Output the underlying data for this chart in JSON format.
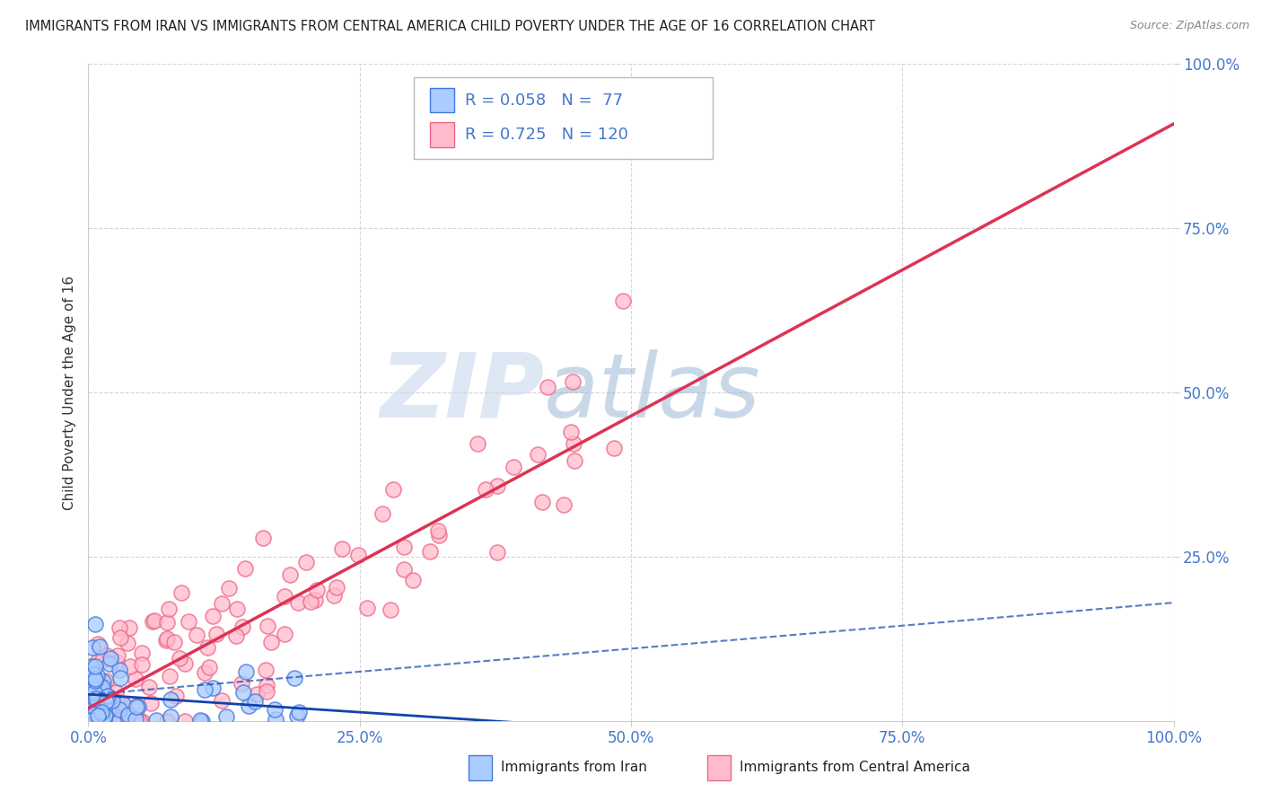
{
  "title": "IMMIGRANTS FROM IRAN VS IMMIGRANTS FROM CENTRAL AMERICA CHILD POVERTY UNDER THE AGE OF 16 CORRELATION CHART",
  "source": "Source: ZipAtlas.com",
  "ylabel": "Child Poverty Under the Age of 16",
  "legend_iran_R": "0.058",
  "legend_iran_N": "77",
  "legend_ca_R": "0.725",
  "legend_ca_N": "120",
  "iran_face_color": "#aaccff",
  "iran_edge_color": "#4477dd",
  "ca_face_color": "#ffbbcc",
  "ca_edge_color": "#ee6688",
  "iran_line_color": "#1144aa",
  "ca_line_color": "#dd3355",
  "background_color": "#ffffff",
  "grid_color": "#cccccc",
  "tick_color": "#4477cc",
  "watermark_color": "#cce0f5",
  "title_color": "#222222",
  "source_color": "#888888"
}
